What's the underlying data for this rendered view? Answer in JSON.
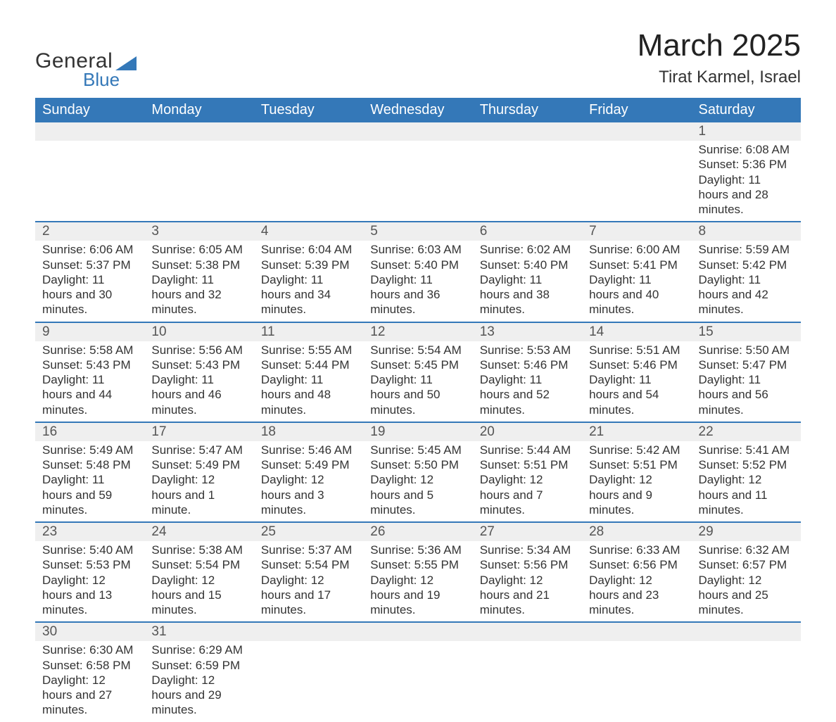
{
  "brand": {
    "word1": "General",
    "word2": "Blue",
    "text_color": "#333333",
    "accent_color": "#3478b8"
  },
  "header": {
    "title": "March 2025",
    "location": "Tirat Karmel, Israel",
    "title_fontsize": 44,
    "location_fontsize": 24
  },
  "calendar": {
    "header_bg": "#3478b8",
    "header_text_color": "#ffffff",
    "daynum_bg": "#efefef",
    "row_border_color": "#3478b8",
    "body_text_color": "#333333",
    "columns": [
      "Sunday",
      "Monday",
      "Tuesday",
      "Wednesday",
      "Thursday",
      "Friday",
      "Saturday"
    ],
    "weeks": [
      [
        {
          "day": "",
          "sunrise": "",
          "sunset": "",
          "daylight": ""
        },
        {
          "day": "",
          "sunrise": "",
          "sunset": "",
          "daylight": ""
        },
        {
          "day": "",
          "sunrise": "",
          "sunset": "",
          "daylight": ""
        },
        {
          "day": "",
          "sunrise": "",
          "sunset": "",
          "daylight": ""
        },
        {
          "day": "",
          "sunrise": "",
          "sunset": "",
          "daylight": ""
        },
        {
          "day": "",
          "sunrise": "",
          "sunset": "",
          "daylight": ""
        },
        {
          "day": "1",
          "sunrise": "Sunrise: 6:08 AM",
          "sunset": "Sunset: 5:36 PM",
          "daylight": "Daylight: 11 hours and 28 minutes."
        }
      ],
      [
        {
          "day": "2",
          "sunrise": "Sunrise: 6:06 AM",
          "sunset": "Sunset: 5:37 PM",
          "daylight": "Daylight: 11 hours and 30 minutes."
        },
        {
          "day": "3",
          "sunrise": "Sunrise: 6:05 AM",
          "sunset": "Sunset: 5:38 PM",
          "daylight": "Daylight: 11 hours and 32 minutes."
        },
        {
          "day": "4",
          "sunrise": "Sunrise: 6:04 AM",
          "sunset": "Sunset: 5:39 PM",
          "daylight": "Daylight: 11 hours and 34 minutes."
        },
        {
          "day": "5",
          "sunrise": "Sunrise: 6:03 AM",
          "sunset": "Sunset: 5:40 PM",
          "daylight": "Daylight: 11 hours and 36 minutes."
        },
        {
          "day": "6",
          "sunrise": "Sunrise: 6:02 AM",
          "sunset": "Sunset: 5:40 PM",
          "daylight": "Daylight: 11 hours and 38 minutes."
        },
        {
          "day": "7",
          "sunrise": "Sunrise: 6:00 AM",
          "sunset": "Sunset: 5:41 PM",
          "daylight": "Daylight: 11 hours and 40 minutes."
        },
        {
          "day": "8",
          "sunrise": "Sunrise: 5:59 AM",
          "sunset": "Sunset: 5:42 PM",
          "daylight": "Daylight: 11 hours and 42 minutes."
        }
      ],
      [
        {
          "day": "9",
          "sunrise": "Sunrise: 5:58 AM",
          "sunset": "Sunset: 5:43 PM",
          "daylight": "Daylight: 11 hours and 44 minutes."
        },
        {
          "day": "10",
          "sunrise": "Sunrise: 5:56 AM",
          "sunset": "Sunset: 5:43 PM",
          "daylight": "Daylight: 11 hours and 46 minutes."
        },
        {
          "day": "11",
          "sunrise": "Sunrise: 5:55 AM",
          "sunset": "Sunset: 5:44 PM",
          "daylight": "Daylight: 11 hours and 48 minutes."
        },
        {
          "day": "12",
          "sunrise": "Sunrise: 5:54 AM",
          "sunset": "Sunset: 5:45 PM",
          "daylight": "Daylight: 11 hours and 50 minutes."
        },
        {
          "day": "13",
          "sunrise": "Sunrise: 5:53 AM",
          "sunset": "Sunset: 5:46 PM",
          "daylight": "Daylight: 11 hours and 52 minutes."
        },
        {
          "day": "14",
          "sunrise": "Sunrise: 5:51 AM",
          "sunset": "Sunset: 5:46 PM",
          "daylight": "Daylight: 11 hours and 54 minutes."
        },
        {
          "day": "15",
          "sunrise": "Sunrise: 5:50 AM",
          "sunset": "Sunset: 5:47 PM",
          "daylight": "Daylight: 11 hours and 56 minutes."
        }
      ],
      [
        {
          "day": "16",
          "sunrise": "Sunrise: 5:49 AM",
          "sunset": "Sunset: 5:48 PM",
          "daylight": "Daylight: 11 hours and 59 minutes."
        },
        {
          "day": "17",
          "sunrise": "Sunrise: 5:47 AM",
          "sunset": "Sunset: 5:49 PM",
          "daylight": "Daylight: 12 hours and 1 minute."
        },
        {
          "day": "18",
          "sunrise": "Sunrise: 5:46 AM",
          "sunset": "Sunset: 5:49 PM",
          "daylight": "Daylight: 12 hours and 3 minutes."
        },
        {
          "day": "19",
          "sunrise": "Sunrise: 5:45 AM",
          "sunset": "Sunset: 5:50 PM",
          "daylight": "Daylight: 12 hours and 5 minutes."
        },
        {
          "day": "20",
          "sunrise": "Sunrise: 5:44 AM",
          "sunset": "Sunset: 5:51 PM",
          "daylight": "Daylight: 12 hours and 7 minutes."
        },
        {
          "day": "21",
          "sunrise": "Sunrise: 5:42 AM",
          "sunset": "Sunset: 5:51 PM",
          "daylight": "Daylight: 12 hours and 9 minutes."
        },
        {
          "day": "22",
          "sunrise": "Sunrise: 5:41 AM",
          "sunset": "Sunset: 5:52 PM",
          "daylight": "Daylight: 12 hours and 11 minutes."
        }
      ],
      [
        {
          "day": "23",
          "sunrise": "Sunrise: 5:40 AM",
          "sunset": "Sunset: 5:53 PM",
          "daylight": "Daylight: 12 hours and 13 minutes."
        },
        {
          "day": "24",
          "sunrise": "Sunrise: 5:38 AM",
          "sunset": "Sunset: 5:54 PM",
          "daylight": "Daylight: 12 hours and 15 minutes."
        },
        {
          "day": "25",
          "sunrise": "Sunrise: 5:37 AM",
          "sunset": "Sunset: 5:54 PM",
          "daylight": "Daylight: 12 hours and 17 minutes."
        },
        {
          "day": "26",
          "sunrise": "Sunrise: 5:36 AM",
          "sunset": "Sunset: 5:55 PM",
          "daylight": "Daylight: 12 hours and 19 minutes."
        },
        {
          "day": "27",
          "sunrise": "Sunrise: 5:34 AM",
          "sunset": "Sunset: 5:56 PM",
          "daylight": "Daylight: 12 hours and 21 minutes."
        },
        {
          "day": "28",
          "sunrise": "Sunrise: 6:33 AM",
          "sunset": "Sunset: 6:56 PM",
          "daylight": "Daylight: 12 hours and 23 minutes."
        },
        {
          "day": "29",
          "sunrise": "Sunrise: 6:32 AM",
          "sunset": "Sunset: 6:57 PM",
          "daylight": "Daylight: 12 hours and 25 minutes."
        }
      ],
      [
        {
          "day": "30",
          "sunrise": "Sunrise: 6:30 AM",
          "sunset": "Sunset: 6:58 PM",
          "daylight": "Daylight: 12 hours and 27 minutes."
        },
        {
          "day": "31",
          "sunrise": "Sunrise: 6:29 AM",
          "sunset": "Sunset: 6:59 PM",
          "daylight": "Daylight: 12 hours and 29 minutes."
        },
        {
          "day": "",
          "sunrise": "",
          "sunset": "",
          "daylight": ""
        },
        {
          "day": "",
          "sunrise": "",
          "sunset": "",
          "daylight": ""
        },
        {
          "day": "",
          "sunrise": "",
          "sunset": "",
          "daylight": ""
        },
        {
          "day": "",
          "sunrise": "",
          "sunset": "",
          "daylight": ""
        },
        {
          "day": "",
          "sunrise": "",
          "sunset": "",
          "daylight": ""
        }
      ]
    ]
  }
}
